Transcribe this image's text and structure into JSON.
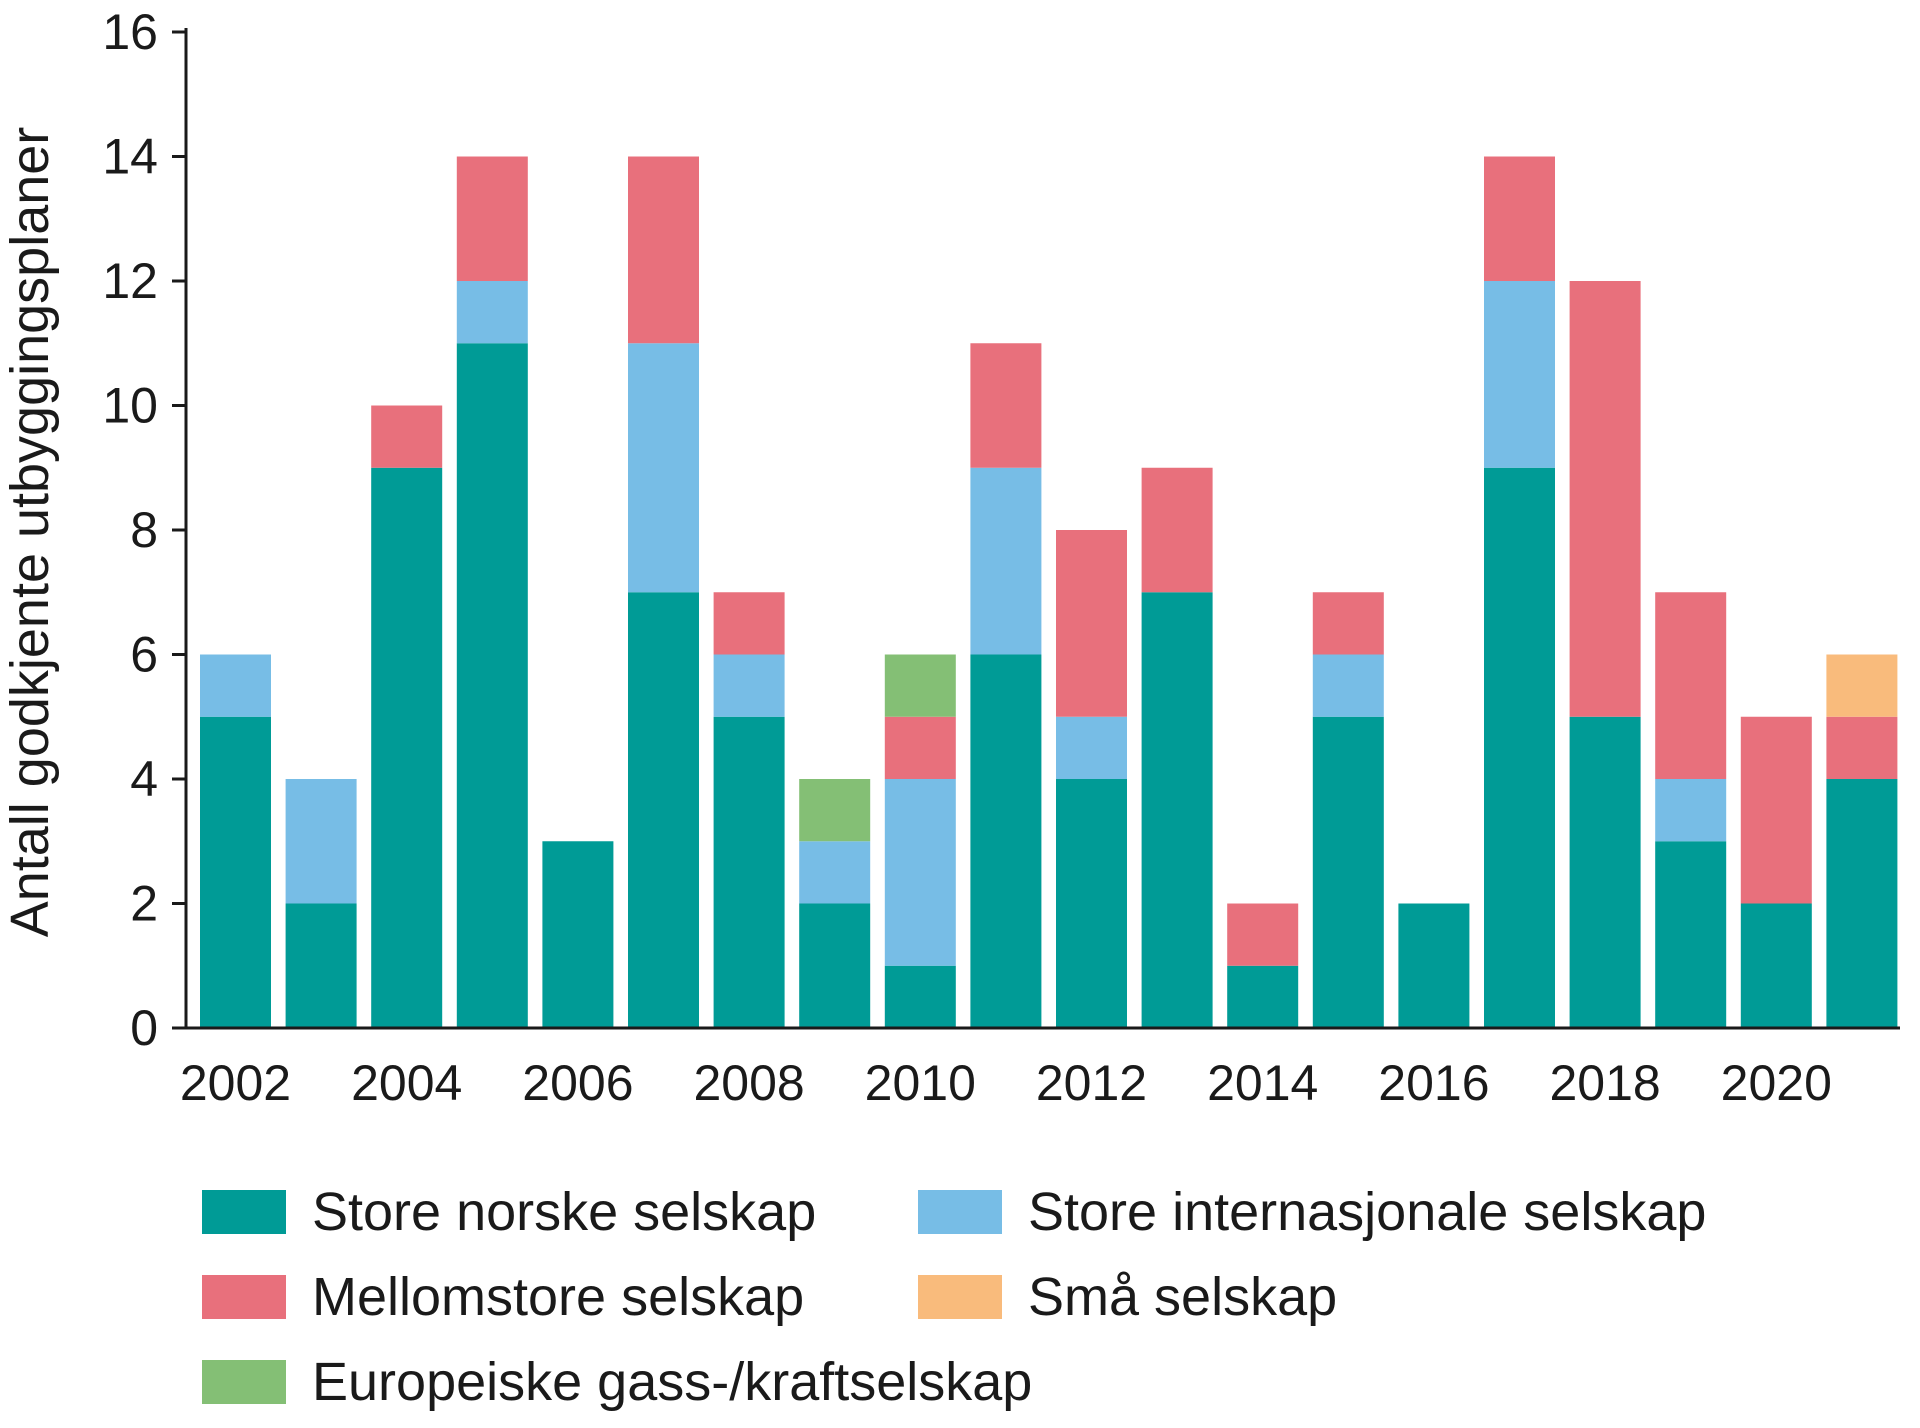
{
  "chart_data": {
    "type": "bar",
    "stacked": true,
    "title": "",
    "xlabel": "",
    "ylabel": "Antall godkjente utbyggingsplaner",
    "ylim": [
      0,
      16
    ],
    "yticks": [
      0,
      2,
      4,
      6,
      8,
      10,
      12,
      14,
      16
    ],
    "grid": false,
    "legend_position": "bottom",
    "categories": [
      2002,
      2003,
      2004,
      2005,
      2006,
      2007,
      2008,
      2009,
      2010,
      2011,
      2012,
      2013,
      2014,
      2015,
      2016,
      2017,
      2018,
      2019,
      2020,
      2021
    ],
    "xtick_labels": [
      "2002",
      "2004",
      "2006",
      "2008",
      "2010",
      "2012",
      "2014",
      "2016",
      "2018",
      "2020"
    ],
    "series": [
      {
        "name": "Store norske selskap",
        "color": "#009b96",
        "values": [
          5,
          2,
          9,
          11,
          3,
          7,
          5,
          2,
          1,
          6,
          4,
          7,
          1,
          5,
          2,
          9,
          5,
          3,
          2,
          4
        ]
      },
      {
        "name": "Store internasjonale selskap",
        "color": "#77bde6",
        "values": [
          1,
          2,
          0,
          1,
          0,
          4,
          1,
          1,
          3,
          3,
          1,
          0,
          0,
          1,
          0,
          3,
          0,
          1,
          0,
          0
        ]
      },
      {
        "name": "Mellomstore selskap",
        "color": "#e8707c",
        "values": [
          0,
          0,
          1,
          2,
          0,
          3,
          1,
          0,
          1,
          2,
          3,
          2,
          1,
          1,
          0,
          2,
          7,
          3,
          3,
          1
        ]
      },
      {
        "name": "Europeiske gass-/kraftselskap",
        "color": "#84bf75",
        "values": [
          0,
          0,
          0,
          0,
          0,
          0,
          0,
          1,
          1,
          0,
          0,
          0,
          0,
          0,
          0,
          0,
          0,
          0,
          0,
          0
        ]
      },
      {
        "name": "Små selskap",
        "color": "#f9bb7c",
        "values": [
          0,
          0,
          0,
          0,
          0,
          0,
          0,
          0,
          0,
          0,
          0,
          0,
          0,
          0,
          0,
          0,
          0,
          0,
          0,
          1
        ]
      }
    ],
    "legend_order": [
      0,
      1,
      2,
      4,
      3
    ]
  }
}
